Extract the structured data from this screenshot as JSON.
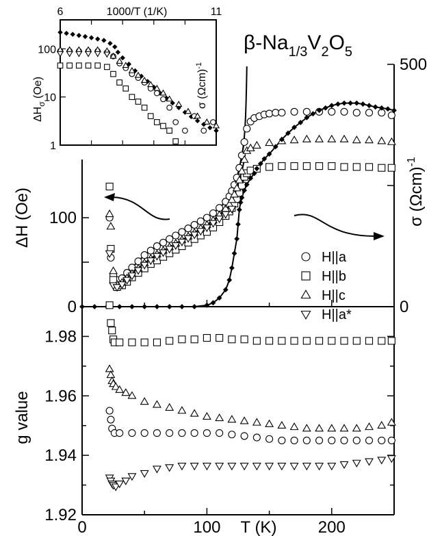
{
  "figure": {
    "title": "β-Na",
    "title_sub1": "1/3",
    "title_mid": "V",
    "title_sub2": "2",
    "title_end": "O",
    "title_sub3": "5"
  },
  "chart_data": [
    {
      "id": "main-linewidth",
      "type": "scatter",
      "xlabel": "T (K)",
      "ylabel": "ΔH (Oe)",
      "y2label": "σ (Ωcm)",
      "y2label_sup": "-1",
      "xlim": [
        0,
        250
      ],
      "ylim": [
        0,
        150
      ],
      "y2lim": [
        0,
        500
      ],
      "x_ticks": [
        "0",
        "100",
        "200"
      ],
      "y_ticks": [
        "0",
        "100"
      ],
      "y2_ticks": [
        "0",
        "500"
      ],
      "legend_position": "center-right",
      "series": [
        {
          "name": "H||a",
          "marker": "circle",
          "x": [
            22,
            23,
            25,
            28,
            32,
            36,
            40,
            45,
            50,
            55,
            60,
            65,
            70,
            75,
            80,
            85,
            90,
            95,
            100,
            105,
            110,
            115,
            118,
            120,
            122,
            124,
            126,
            128,
            130,
            132,
            135,
            138,
            142,
            146,
            150,
            155,
            160,
            170,
            180,
            190,
            200,
            210,
            220,
            230,
            240,
            248
          ],
          "y": [
            100,
            55,
            35,
            30,
            32,
            38,
            44,
            51,
            58,
            63,
            68,
            72,
            76,
            80,
            84,
            88,
            92,
            96,
            100,
            105,
            111,
            118,
            124,
            130,
            137,
            145,
            156,
            170,
            185,
            200,
            208,
            212,
            214,
            216,
            217,
            218,
            218,
            219,
            219,
            219,
            219,
            219,
            218,
            218,
            218,
            215
          ]
        },
        {
          "name": "H||b",
          "marker": "square",
          "x": [
            22,
            23,
            25,
            28,
            32,
            36,
            40,
            45,
            50,
            55,
            60,
            65,
            70,
            75,
            80,
            85,
            90,
            95,
            100,
            105,
            110,
            115,
            118,
            120,
            122,
            124,
            126,
            128,
            130,
            132,
            135,
            140,
            150,
            160,
            170,
            180,
            190,
            200,
            210,
            220,
            230,
            240,
            248
          ],
          "y": [
            135,
            65,
            30,
            22,
            24,
            28,
            33,
            38,
            43,
            48,
            52,
            56,
            60,
            64,
            68,
            72,
            76,
            80,
            84,
            89,
            95,
            102,
            107,
            111,
            116,
            121,
            128,
            136,
            146,
            150,
            153,
            155,
            157,
            158,
            158,
            158,
            158,
            158,
            157,
            157,
            157,
            156,
            156
          ]
        },
        {
          "name": "H||c",
          "marker": "triangle-up",
          "x": [
            22,
            23,
            25,
            28,
            32,
            36,
            40,
            45,
            50,
            55,
            60,
            65,
            70,
            75,
            80,
            85,
            90,
            95,
            100,
            105,
            110,
            115,
            118,
            120,
            122,
            124,
            126,
            128,
            130,
            132,
            135,
            140,
            150,
            160,
            170,
            180,
            190,
            200,
            210,
            220,
            230,
            240,
            248
          ],
          "y": [
            104,
            90,
            40,
            25,
            27,
            32,
            37,
            43,
            49,
            54,
            59,
            63,
            67,
            71,
            75,
            79,
            83,
            88,
            92,
            97,
            103,
            110,
            115,
            120,
            126,
            133,
            142,
            152,
            165,
            175,
            178,
            181,
            184,
            186,
            187,
            188,
            188,
            188,
            188,
            187,
            187,
            186,
            185
          ]
        },
        {
          "name": "H||a*",
          "marker": "triangle-down",
          "x": [
            22,
            25,
            28,
            32,
            36,
            40,
            45,
            50,
            55,
            60,
            65,
            70,
            75,
            80,
            85,
            90,
            95,
            100,
            105,
            110,
            115,
            120
          ],
          "y": [
            60,
            24,
            22,
            25,
            30,
            35,
            41,
            47,
            52,
            57,
            61,
            65,
            69,
            73,
            77,
            81,
            85,
            89,
            94,
            99,
            104,
            110
          ]
        },
        {
          "name": "σ",
          "marker": "diamond",
          "axis": "y2",
          "x": [
            0,
            10,
            20,
            30,
            40,
            50,
            60,
            70,
            80,
            90,
            100,
            105,
            110,
            115,
            118,
            120,
            122,
            124,
            125,
            126,
            127,
            128,
            130,
            132,
            135,
            138,
            140,
            143,
            146,
            150,
            155,
            160,
            165,
            170,
            175,
            180,
            185,
            190,
            195,
            200,
            205,
            210,
            215,
            220,
            225,
            230,
            235,
            240,
            245,
            250
          ],
          "y": [
            0,
            0,
            0,
            0,
            0,
            0,
            0,
            0,
            0,
            0,
            3,
            8,
            18,
            35,
            55,
            80,
            110,
            140,
            170,
            200,
            215,
            225,
            240,
            252,
            265,
            275,
            285,
            295,
            305,
            315,
            330,
            345,
            358,
            370,
            380,
            390,
            398,
            405,
            410,
            415,
            418,
            420,
            420,
            420,
            418,
            415,
            412,
            410,
            408,
            405
          ]
        }
      ]
    },
    {
      "id": "main-gvalue",
      "type": "scatter",
      "ylabel": "g value",
      "xlim": [
        0,
        250
      ],
      "ylim": [
        1.92,
        1.99
      ],
      "y_ticks": [
        "1.92",
        "1.94",
        "1.96",
        "1.98"
      ],
      "series": [
        {
          "name": "H||a",
          "marker": "circle",
          "x": [
            22,
            23,
            24,
            26,
            30,
            40,
            50,
            60,
            70,
            80,
            90,
            100,
            110,
            120,
            130,
            140,
            150,
            160,
            170,
            180,
            190,
            200,
            210,
            220,
            230,
            240,
            248
          ],
          "y": [
            1.955,
            1.952,
            1.949,
            1.9475,
            1.9475,
            1.9475,
            1.9475,
            1.9475,
            1.9475,
            1.9475,
            1.9475,
            1.9475,
            1.9475,
            1.947,
            1.9465,
            1.946,
            1.9455,
            1.945,
            1.945,
            1.945,
            1.945,
            1.945,
            1.945,
            1.945,
            1.945,
            1.945,
            1.945
          ]
        },
        {
          "name": "H||b",
          "marker": "square",
          "x": [
            22,
            23,
            24,
            25,
            26,
            30,
            40,
            50,
            60,
            70,
            80,
            90,
            100,
            110,
            120,
            130,
            140,
            150,
            160,
            170,
            180,
            190,
            200,
            210,
            220,
            230,
            240,
            248
          ],
          "y": [
            1.9905,
            1.9845,
            1.982,
            1.979,
            1.978,
            1.978,
            1.978,
            1.978,
            1.978,
            1.9785,
            1.979,
            1.979,
            1.9795,
            1.9795,
            1.979,
            1.979,
            1.9785,
            1.9785,
            1.9785,
            1.9785,
            1.9785,
            1.9785,
            1.9785,
            1.9785,
            1.9785,
            1.9785,
            1.9785,
            1.9785
          ]
        },
        {
          "name": "H||c",
          "marker": "triangle-up",
          "x": [
            22,
            23,
            24,
            25,
            27,
            30,
            35,
            40,
            50,
            60,
            70,
            80,
            90,
            100,
            110,
            120,
            130,
            140,
            150,
            160,
            170,
            180,
            190,
            200,
            210,
            220,
            230,
            240,
            248
          ],
          "y": [
            1.969,
            1.967,
            1.965,
            1.964,
            1.963,
            1.962,
            1.961,
            1.96,
            1.958,
            1.957,
            1.956,
            1.955,
            1.954,
            1.953,
            1.9525,
            1.952,
            1.9515,
            1.951,
            1.9505,
            1.95,
            1.9495,
            1.949,
            1.949,
            1.949,
            1.949,
            1.949,
            1.9495,
            1.95,
            1.951
          ]
        },
        {
          "name": "H||a*",
          "marker": "triangle-down",
          "x": [
            22,
            23,
            24,
            25,
            27,
            30,
            35,
            40,
            50,
            60,
            70,
            80,
            90,
            100,
            110,
            120,
            130,
            140,
            150,
            160,
            170,
            180,
            190,
            200,
            210,
            220,
            230,
            240,
            248
          ],
          "y": [
            1.9325,
            1.9315,
            1.9305,
            1.93,
            1.9295,
            1.9305,
            1.9315,
            1.933,
            1.934,
            1.9355,
            1.936,
            1.9365,
            1.9365,
            1.9365,
            1.9365,
            1.9365,
            1.9365,
            1.9365,
            1.9365,
            1.9365,
            1.9365,
            1.9365,
            1.9365,
            1.9365,
            1.937,
            1.9375,
            1.938,
            1.9385,
            1.939
          ]
        }
      ]
    },
    {
      "id": "inset",
      "type": "scatter",
      "xlabel": "1000/T (1/K)",
      "ylabel": "ΔH",
      "ylabel_sub": "σ",
      "ylabel_unit": " (Oe)",
      "y2label": "σ (Ωcm)",
      "y2label_sup": "-1",
      "xlim": [
        6,
        11
      ],
      "ylim": [
        1,
        400
      ],
      "y_scale": "log",
      "x_ticks": [
        "6",
        "11"
      ],
      "x_axis_label_position": "top",
      "y_ticks": [
        "1",
        "10",
        "100"
      ],
      "series": [
        {
          "name": "σ",
          "marker": "diamond",
          "x": [
            6.0,
            6.2,
            6.4,
            6.6,
            6.8,
            7.0,
            7.2,
            7.4,
            7.6,
            7.75,
            7.85,
            8.0,
            8.2,
            8.4,
            8.6,
            8.8,
            9.0,
            9.2,
            9.4,
            9.6,
            9.8,
            10.0,
            10.2,
            10.4,
            10.6,
            10.8,
            11.0
          ],
          "y": [
            220,
            210,
            200,
            190,
            180,
            170,
            160,
            150,
            130,
            110,
            85,
            65,
            48,
            35,
            27,
            21,
            16,
            12,
            9.5,
            7.5,
            6.0,
            4.8,
            3.9,
            3.2,
            2.7,
            2.3,
            2.0
          ]
        },
        {
          "name": "H||a",
          "marker": "circle",
          "x": [
            6.0,
            6.3,
            6.6,
            6.9,
            7.2,
            7.5,
            7.7,
            7.9,
            8.1,
            8.3,
            8.5,
            8.7,
            8.9,
            9.1,
            9.3,
            9.5,
            9.7,
            10.0,
            10.3,
            10.6,
            10.9
          ],
          "y": [
            90,
            90,
            90,
            90,
            90,
            85,
            70,
            50,
            40,
            30,
            25,
            20,
            15,
            12,
            9,
            6,
            3,
            2,
            4,
            2,
            3
          ]
        },
        {
          "name": "H||b",
          "marker": "square",
          "x": [
            6.0,
            6.3,
            6.6,
            6.9,
            7.2,
            7.5,
            7.7,
            7.9,
            8.1,
            8.3,
            8.5,
            8.7,
            8.9,
            9.1,
            9.3,
            9.5,
            9.7
          ],
          "y": [
            45,
            45,
            45,
            45,
            45,
            42,
            30,
            20,
            15,
            10,
            8,
            6,
            4,
            3,
            2.5,
            2,
            1.2
          ]
        },
        {
          "name": "H||c",
          "marker": "triangle-up",
          "x": [
            6.0,
            6.3,
            6.6,
            6.9,
            7.2,
            7.5,
            7.7,
            7.9,
            8.1,
            8.3,
            8.5,
            8.7,
            8.9,
            9.1,
            9.3,
            9.5,
            9.8,
            10.1,
            10.4,
            10.7,
            11.0
          ],
          "y": [
            95,
            95,
            95,
            95,
            95,
            90,
            70,
            55,
            45,
            35,
            28,
            22,
            18,
            15,
            12,
            9,
            7,
            5,
            4,
            3,
            2.5
          ]
        },
        {
          "name": "H||a*",
          "marker": "triangle-down",
          "x": [
            6.0,
            6.3,
            6.6,
            6.9,
            7.2,
            7.5
          ],
          "y": [
            80,
            80,
            80,
            80,
            80,
            78
          ]
        }
      ]
    }
  ]
}
